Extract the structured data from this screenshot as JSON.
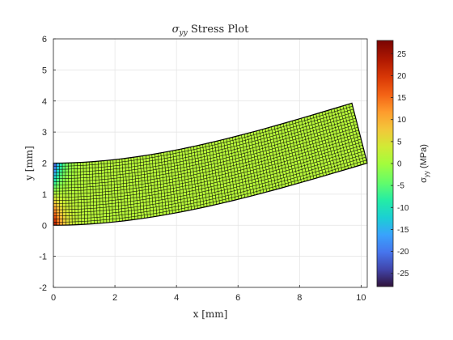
{
  "chart_data": {
    "type": "heatmap",
    "title_main": "σ",
    "title_sub": "yy",
    "title_rest": " Stress Plot",
    "xlabel": "x [mm]",
    "ylabel": "y [mm]",
    "xlim": [
      0,
      10.2
    ],
    "ylim": [
      -2,
      6
    ],
    "xticks": [
      0,
      2,
      4,
      6,
      8,
      10
    ],
    "yticks": [
      -2,
      -1,
      0,
      1,
      2,
      3,
      4,
      5,
      6
    ],
    "grid": true,
    "colorbar": {
      "label_main": "σ",
      "label_sub": "yy",
      "label_rest": " (MPa)",
      "range": [
        -28,
        28
      ],
      "ticks": [
        -25,
        -20,
        -15,
        -10,
        -5,
        0,
        5,
        10,
        15,
        20,
        25
      ],
      "colormap": "turbo"
    },
    "mesh": {
      "elements_along_length": 100,
      "elements_through_height": 20,
      "undeformed_length": 10,
      "undeformed_height": 2,
      "tip_deflection_bottom_right": 2.0,
      "tip_deflection_top_right": 3.93,
      "tip_x_bottom_right": 10.2,
      "tip_x_top_right": 9.7
    },
    "stress_field": {
      "background_value": 1.5,
      "root_concentration_peak_top": -28,
      "root_concentration_peak_bottom": 28
    }
  }
}
